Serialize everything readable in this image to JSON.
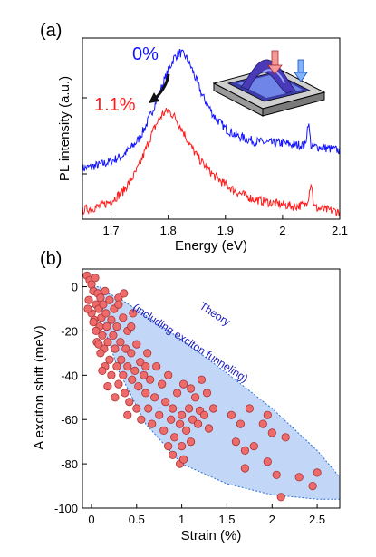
{
  "colors": {
    "series_0pct": "#1414ff",
    "series_11pct": "#ff1a1a",
    "theory_fill": "#b3cdf5",
    "theory_edge": "#2a6fd6",
    "theory_text": "#1a1ab8",
    "markers": "#ee6b6b",
    "marker_edge": "#a83232"
  },
  "chart_data": [
    {
      "type": "line",
      "panel_label": "(a)",
      "xlabel": "Energy (eV)",
      "ylabel": "PL intensity (a.u.)",
      "xlim": [
        1.65,
        2.1
      ],
      "xticks": [
        1.7,
        1.8,
        1.9,
        2.0,
        2.1
      ],
      "xtick_labels": [
        "1.7",
        "1.8",
        "1.9",
        "2",
        "2.1"
      ],
      "y_values_shown": false,
      "series": [
        {
          "name": "0%",
          "color": "#1414ff",
          "x": [
            1.65,
            1.68,
            1.7,
            1.72,
            1.74,
            1.75,
            1.76,
            1.77,
            1.78,
            1.79,
            1.8,
            1.81,
            1.82,
            1.83,
            1.84,
            1.85,
            1.86,
            1.88,
            1.9,
            1.92,
            1.95,
            1.98,
            2.0,
            2.02,
            2.04,
            2.045,
            2.05,
            2.055,
            2.06,
            2.08,
            2.1
          ],
          "values": [
            0.28,
            0.3,
            0.32,
            0.35,
            0.41,
            0.45,
            0.51,
            0.58,
            0.66,
            0.74,
            0.82,
            0.89,
            0.92,
            0.9,
            0.84,
            0.76,
            0.68,
            0.57,
            0.5,
            0.46,
            0.43,
            0.42,
            0.42,
            0.41,
            0.41,
            0.54,
            0.4,
            0.4,
            0.4,
            0.39,
            0.38
          ]
        },
        {
          "name": "1.1%",
          "color": "#ff1a1a",
          "x": [
            1.65,
            1.68,
            1.7,
            1.72,
            1.74,
            1.75,
            1.76,
            1.77,
            1.78,
            1.79,
            1.8,
            1.81,
            1.82,
            1.83,
            1.84,
            1.85,
            1.86,
            1.88,
            1.9,
            1.92,
            1.95,
            1.98,
            2.0,
            2.02,
            2.04,
            2.045,
            2.05,
            2.055,
            2.06,
            2.08,
            2.1
          ],
          "values": [
            0.05,
            0.07,
            0.1,
            0.15,
            0.24,
            0.3,
            0.38,
            0.46,
            0.53,
            0.58,
            0.6,
            0.57,
            0.52,
            0.46,
            0.4,
            0.35,
            0.31,
            0.24,
            0.19,
            0.15,
            0.11,
            0.09,
            0.08,
            0.07,
            0.08,
            0.12,
            0.21,
            0.07,
            0.06,
            0.05,
            0.04
          ]
        }
      ],
      "annotations": [
        "0%",
        "1.1%"
      ]
    },
    {
      "type": "scatter",
      "panel_label": "(b)",
      "xlabel": "Strain (%)",
      "ylabel": "A exciton shift (meV)",
      "xlim": [
        -0.1,
        2.75
      ],
      "ylim": [
        -100,
        8
      ],
      "xticks": [
        0,
        0.5,
        1,
        1.5,
        2,
        2.5
      ],
      "xtick_labels": [
        "0",
        "0.5",
        "1",
        "1.5",
        "2",
        "2.5"
      ],
      "yticks": [
        0,
        -20,
        -40,
        -60,
        -80,
        -100
      ],
      "ytick_labels": [
        "0",
        "-20",
        "-40",
        "-60",
        "-80",
        "-100"
      ],
      "theory_label_line1": "Theory",
      "theory_label_line2": "(including exciton funneling)",
      "theory_band": {
        "upper": [
          [
            0,
            0
          ],
          [
            0.3,
            -5
          ],
          [
            0.6,
            -13
          ],
          [
            1.0,
            -24
          ],
          [
            1.5,
            -39
          ],
          [
            2.0,
            -55
          ],
          [
            2.5,
            -74
          ],
          [
            2.75,
            -86
          ]
        ],
        "lower": [
          [
            0.1,
            0
          ],
          [
            0.15,
            -20
          ],
          [
            0.3,
            -38
          ],
          [
            0.6,
            -62
          ],
          [
            1.0,
            -80
          ],
          [
            1.5,
            -89
          ],
          [
            2.0,
            -94
          ],
          [
            2.5,
            -96
          ],
          [
            2.75,
            -96
          ]
        ]
      },
      "points": [
        [
          -0.05,
          5
        ],
        [
          -0.02,
          3
        ],
        [
          0.0,
          1
        ],
        [
          0.02,
          -2
        ],
        [
          0.04,
          4
        ],
        [
          -0.03,
          -6
        ],
        [
          0.05,
          -8
        ],
        [
          0.0,
          -12
        ],
        [
          0.03,
          -15
        ],
        [
          -0.04,
          -10
        ],
        [
          0.07,
          -3
        ],
        [
          0.08,
          -10
        ],
        [
          0.09,
          -18
        ],
        [
          0.1,
          -5
        ],
        [
          0.11,
          -14
        ],
        [
          0.12,
          -22
        ],
        [
          0.06,
          -25
        ],
        [
          0.13,
          -8
        ],
        [
          0.14,
          -28
        ],
        [
          0.15,
          -2
        ],
        [
          0.05,
          -20
        ],
        [
          0.1,
          -30
        ],
        [
          0.16,
          -12
        ],
        [
          0.17,
          -18
        ],
        [
          0.18,
          -25
        ],
        [
          0.2,
          -6
        ],
        [
          0.2,
          -33
        ],
        [
          0.22,
          -15
        ],
        [
          0.22,
          -40
        ],
        [
          0.24,
          -22
        ],
        [
          0.25,
          -10
        ],
        [
          0.26,
          -28
        ],
        [
          0.28,
          -36
        ],
        [
          0.28,
          -18
        ],
        [
          0.3,
          -44
        ],
        [
          0.3,
          -5
        ],
        [
          0.32,
          -25
        ],
        [
          0.33,
          -33
        ],
        [
          0.35,
          -14
        ],
        [
          0.35,
          -40
        ],
        [
          0.37,
          -48
        ],
        [
          0.38,
          -28
        ],
        [
          0.4,
          -20
        ],
        [
          0.4,
          -36
        ],
        [
          0.42,
          -52
        ],
        [
          0.44,
          -30
        ],
        [
          0.45,
          -42
        ],
        [
          0.46,
          -12
        ],
        [
          0.48,
          -38
        ],
        [
          0.5,
          -55
        ],
        [
          0.5,
          -26
        ],
        [
          0.52,
          -45
        ],
        [
          0.54,
          -34
        ],
        [
          0.55,
          -60
        ],
        [
          0.58,
          -40
        ],
        [
          0.6,
          -48
        ],
        [
          0.62,
          -30
        ],
        [
          0.63,
          -55
        ],
        [
          0.65,
          -42
        ],
        [
          0.67,
          -62
        ],
        [
          0.3,
          -8
        ],
        [
          0.36,
          -3
        ],
        [
          0.15,
          -36
        ],
        [
          0.18,
          -45
        ],
        [
          0.08,
          -26
        ],
        [
          0.44,
          -18
        ],
        [
          0.26,
          -50
        ],
        [
          0.4,
          -58
        ],
        [
          0.02,
          -16
        ],
        [
          0.12,
          -38
        ],
        [
          0.7,
          -50
        ],
        [
          0.72,
          -36
        ],
        [
          0.75,
          -58
        ],
        [
          0.78,
          -44
        ],
        [
          0.8,
          -65
        ],
        [
          0.82,
          -52
        ],
        [
          0.85,
          -40
        ],
        [
          0.88,
          -60
        ],
        [
          0.9,
          -55
        ],
        [
          0.92,
          -68
        ],
        [
          0.95,
          -48
        ],
        [
          0.98,
          -62
        ],
        [
          1.0,
          -58
        ],
        [
          1.0,
          -72
        ],
        [
          1.02,
          -44
        ],
        [
          1.05,
          -65
        ],
        [
          1.08,
          -55
        ],
        [
          1.1,
          -70
        ],
        [
          1.12,
          -60
        ],
        [
          1.15,
          -50
        ],
        [
          1.18,
          -62
        ],
        [
          1.2,
          -56
        ],
        [
          1.22,
          -42
        ],
        [
          1.25,
          -58
        ],
        [
          1.28,
          -48
        ],
        [
          1.3,
          -64
        ],
        [
          1.35,
          -55
        ],
        [
          0.98,
          -80
        ],
        [
          1.02,
          -78
        ],
        [
          0.9,
          -76
        ],
        [
          1.55,
          -58
        ],
        [
          1.6,
          -70
        ],
        [
          1.65,
          -62
        ],
        [
          1.7,
          -74
        ],
        [
          1.75,
          -55
        ],
        [
          1.8,
          -72
        ],
        [
          1.9,
          -62
        ],
        [
          1.95,
          -58
        ],
        [
          2.0,
          -66
        ],
        [
          2.05,
          -85
        ],
        [
          2.1,
          -95
        ],
        [
          2.15,
          -68
        ],
        [
          2.3,
          -86
        ],
        [
          2.45,
          -90
        ],
        [
          2.5,
          -84
        ],
        [
          1.7,
          -82
        ],
        [
          1.95,
          -79
        ],
        [
          0.85,
          -72
        ],
        [
          1.1,
          -46
        ],
        [
          0.6,
          -36
        ]
      ]
    }
  ]
}
